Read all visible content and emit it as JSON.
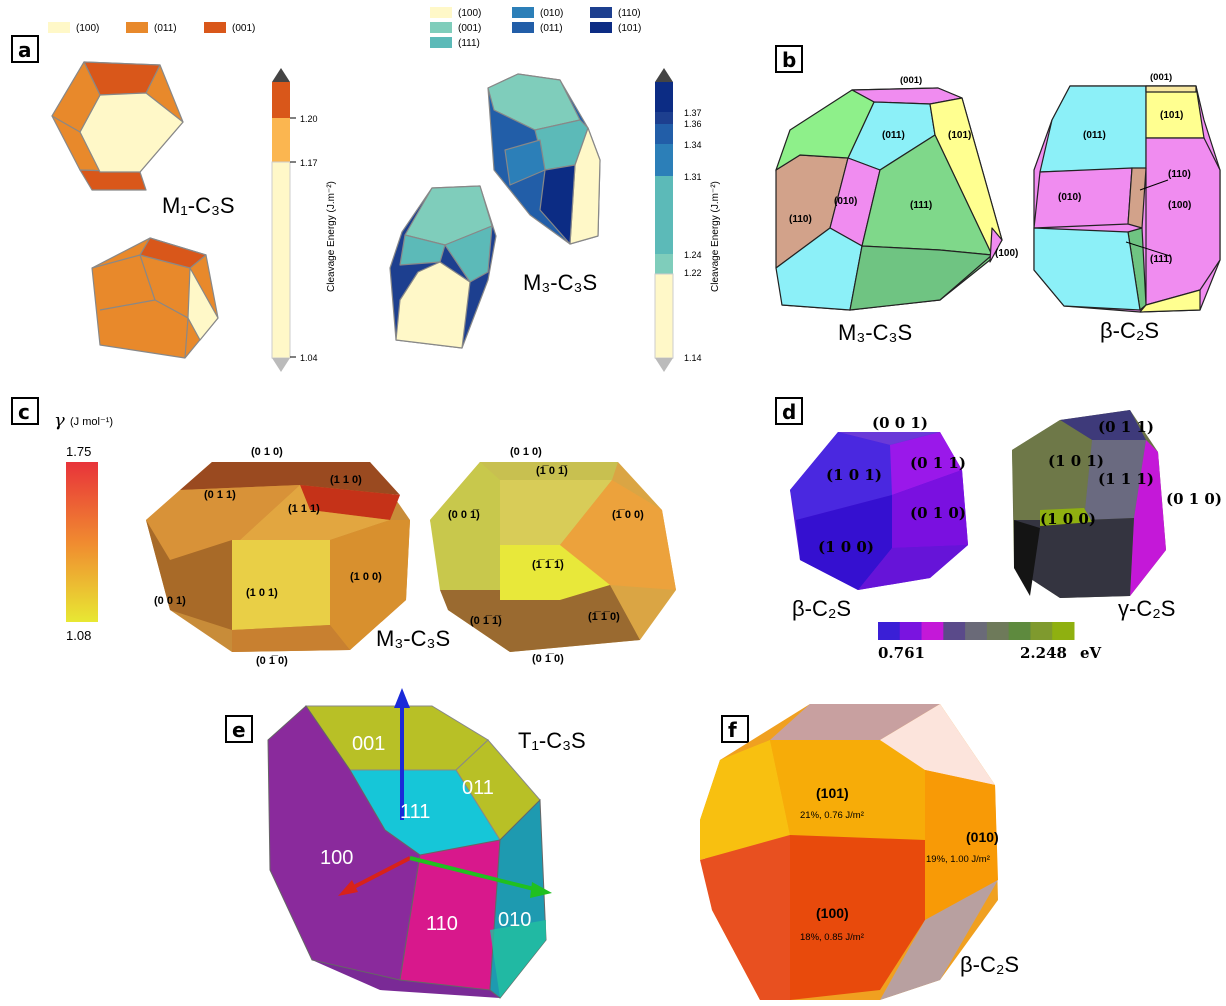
{
  "panels": {
    "a": {
      "tag": "a",
      "legend_m1": [
        "(100)",
        "(011)",
        "(001)"
      ],
      "legend_m1_colors": [
        "#fff8c8",
        "#e8892b",
        "#d9571a"
      ],
      "legend_m3": [
        "(100)",
        "(010)",
        "(110)",
        "(001)",
        "(011)",
        "(101)",
        "(111)"
      ],
      "legend_m3_colors": [
        "#fff8c8",
        "#2c7fb8",
        "#1d3f8f",
        "#7fcdbb",
        "#225ea8",
        "#0c2c84",
        "#5cbab8"
      ],
      "label_m1": "M₁-C₃S",
      "label_m3": "M₃-C₃S",
      "cbar1": {
        "ticks": [
          "1.20",
          "1.17",
          "1.04"
        ],
        "title": "Cleavage Energy (J.m⁻²)"
      },
      "cbar2": {
        "ticks": [
          "1.37",
          "1.36",
          "1.34",
          "1.31",
          "1.24",
          "1.22",
          "1.14"
        ],
        "title": "Cleavage Energy (J.m⁻²)"
      }
    },
    "b": {
      "tag": "b",
      "m3_faces": [
        "(001)",
        "(011)",
        "(101)",
        "(110)",
        "(010)",
        "(111)",
        "(100)"
      ],
      "c2s_faces": [
        "(001)",
        "(011)",
        "(101)",
        "(110)",
        "(010)",
        "(100)",
        "(111)"
      ],
      "label_m3": "M₃-C₃S",
      "label_c2s": "β-C₂S"
    },
    "c": {
      "tag": "c",
      "gamma_label": "γ",
      "gamma_unit": "(J mol⁻¹)",
      "scale_max": "1.75",
      "scale_min": "1.08",
      "left_faces": [
        "(0 1 0)",
        "(1 1 0)",
        "(0 1 1)",
        "(1 1 1)",
        "(1 0 1)",
        "(1 0 0)",
        "(0 0 1)",
        "(0 1̅ 0)"
      ],
      "right_faces": [
        "(0 1 0)",
        "(1̅ 0 1̅)",
        "(0 0 1̅)",
        "(1̅ 0 0)",
        "(1̅ 1̅ 1̅)",
        "(0 1̅ 1̅)",
        "(1̅ 1̅ 0)",
        "(0 1̅ 0)"
      ],
      "label": "M₃-C₃S"
    },
    "d": {
      "tag": "d",
      "beta_faces": [
        "(0 0 1)",
        "(1 0 1)",
        "(0 1 1)",
        "(0 1 0)",
        "(1 0 0)"
      ],
      "gamma_faces": [
        "(0 1 1)",
        "(1 0 1)",
        "(1 1 1)",
        "(0 1 0)",
        "(1 0 0)"
      ],
      "label_beta": "β-C₂S",
      "label_gamma": "γ-C₂S",
      "cbar_min": "0.761",
      "cbar_max": "2.248",
      "cbar_unit": "eV",
      "cbar_colors": [
        "#3a1fd6",
        "#7a14e0",
        "#c418d8",
        "#5a4a8a",
        "#6a6a78",
        "#6e7a5a",
        "#5e8a3e",
        "#7f9a2e",
        "#8fb010"
      ]
    },
    "e": {
      "tag": "e",
      "faces": [
        "001",
        "011",
        "111",
        "100",
        "110",
        "010"
      ],
      "label": "T₁-C₃S"
    },
    "f": {
      "tag": "f",
      "face_101": "(101)",
      "face_101_info": "21%, 0.76 J/m²",
      "face_010": "(010)",
      "face_010_info": "19%, 1.00 J/m²",
      "face_100": "(100)",
      "face_100_info": "18%, 0.85 J/m²",
      "label": "β-C₂S"
    }
  }
}
